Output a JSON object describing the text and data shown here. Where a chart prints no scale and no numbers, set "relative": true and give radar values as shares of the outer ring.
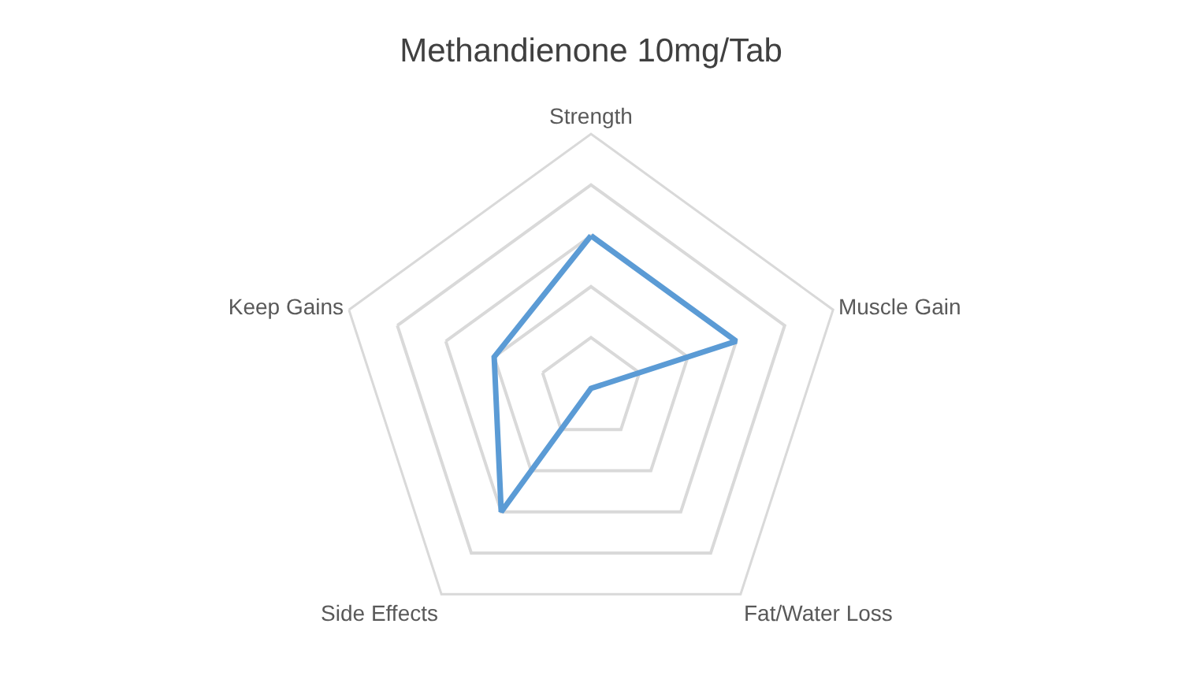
{
  "chart_data": {
    "type": "radar",
    "title": "Methandienone 10mg/Tab",
    "relative": true,
    "grid": true,
    "categories": [
      "Strength",
      "Muscle Gain",
      "Fat/Water Loss",
      "Side Effects",
      "Keep Gains"
    ],
    "series": [
      {
        "color": "#5b9bd5",
        "values": [
          0.6,
          0.6,
          0.0,
          0.6,
          0.4
        ]
      }
    ]
  }
}
